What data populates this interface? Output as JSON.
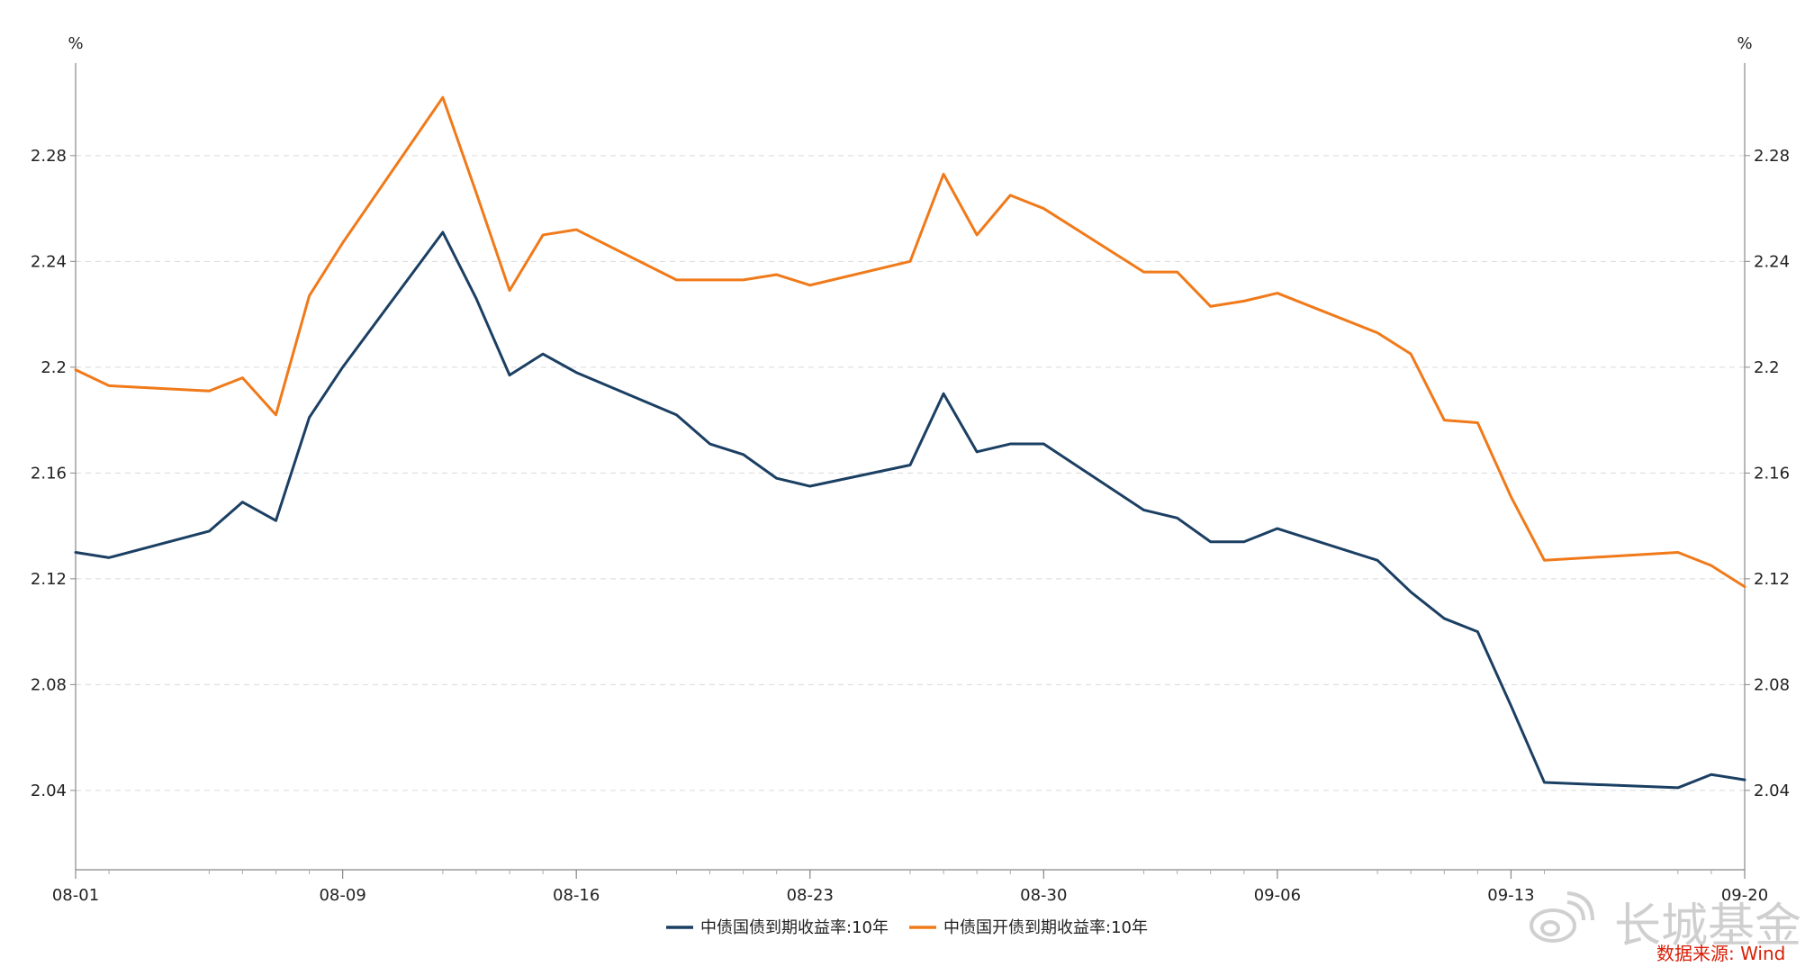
{
  "chart_data": {
    "type": "line",
    "title": "",
    "xlabel": "",
    "ylabel": "%",
    "y2label": "%",
    "ylim": [
      2.01,
      2.315
    ],
    "yticks": [
      "2.04",
      "2.08",
      "2.12",
      "2.16",
      "2.2",
      "2.24",
      "2.28"
    ],
    "xticks": [
      "08-01",
      "08-09",
      "08-16",
      "08-23",
      "08-30",
      "09-06",
      "09-13",
      "09-20"
    ],
    "grid": "horizontal dashed",
    "legend_position": "bottom",
    "dates": [
      "2024-08-01",
      "2024-08-02",
      "2024-08-05",
      "2024-08-06",
      "2024-08-07",
      "2024-08-08",
      "2024-08-09",
      "2024-08-12",
      "2024-08-13",
      "2024-08-14",
      "2024-08-15",
      "2024-08-16",
      "2024-08-19",
      "2024-08-20",
      "2024-08-21",
      "2024-08-22",
      "2024-08-23",
      "2024-08-26",
      "2024-08-27",
      "2024-08-28",
      "2024-08-29",
      "2024-08-30",
      "2024-09-02",
      "2024-09-03",
      "2024-09-04",
      "2024-09-05",
      "2024-09-06",
      "2024-09-09",
      "2024-09-10",
      "2024-09-11",
      "2024-09-12",
      "2024-09-13",
      "2024-09-14",
      "2024-09-18",
      "2024-09-19",
      "2024-09-20"
    ],
    "series": [
      {
        "name": "中债国债到期收益率:10年",
        "color": "#1b3f63",
        "values": [
          2.13,
          2.128,
          2.138,
          2.149,
          2.142,
          2.181,
          2.2,
          2.251,
          2.226,
          2.197,
          2.205,
          2.198,
          2.182,
          2.171,
          2.167,
          2.158,
          2.155,
          2.163,
          2.19,
          2.168,
          2.171,
          2.171,
          2.146,
          2.143,
          2.134,
          2.134,
          2.139,
          2.127,
          2.115,
          2.105,
          2.1,
          2.072,
          2.043,
          2.041,
          2.046,
          2.044
        ]
      },
      {
        "name": "中债国开债到期收益率:10年",
        "color": "#f07a1a",
        "values": [
          2.199,
          2.193,
          2.191,
          2.196,
          2.182,
          2.227,
          2.247,
          2.302,
          2.266,
          2.229,
          2.25,
          2.252,
          2.233,
          2.233,
          2.233,
          2.235,
          2.231,
          2.24,
          2.273,
          2.25,
          2.265,
          2.26,
          2.236,
          2.236,
          2.223,
          2.225,
          2.228,
          2.213,
          2.205,
          2.18,
          2.179,
          2.151,
          2.127,
          2.13,
          2.125,
          2.117
        ]
      }
    ]
  },
  "source": "数据来源: Wind",
  "watermark": "长城基金"
}
